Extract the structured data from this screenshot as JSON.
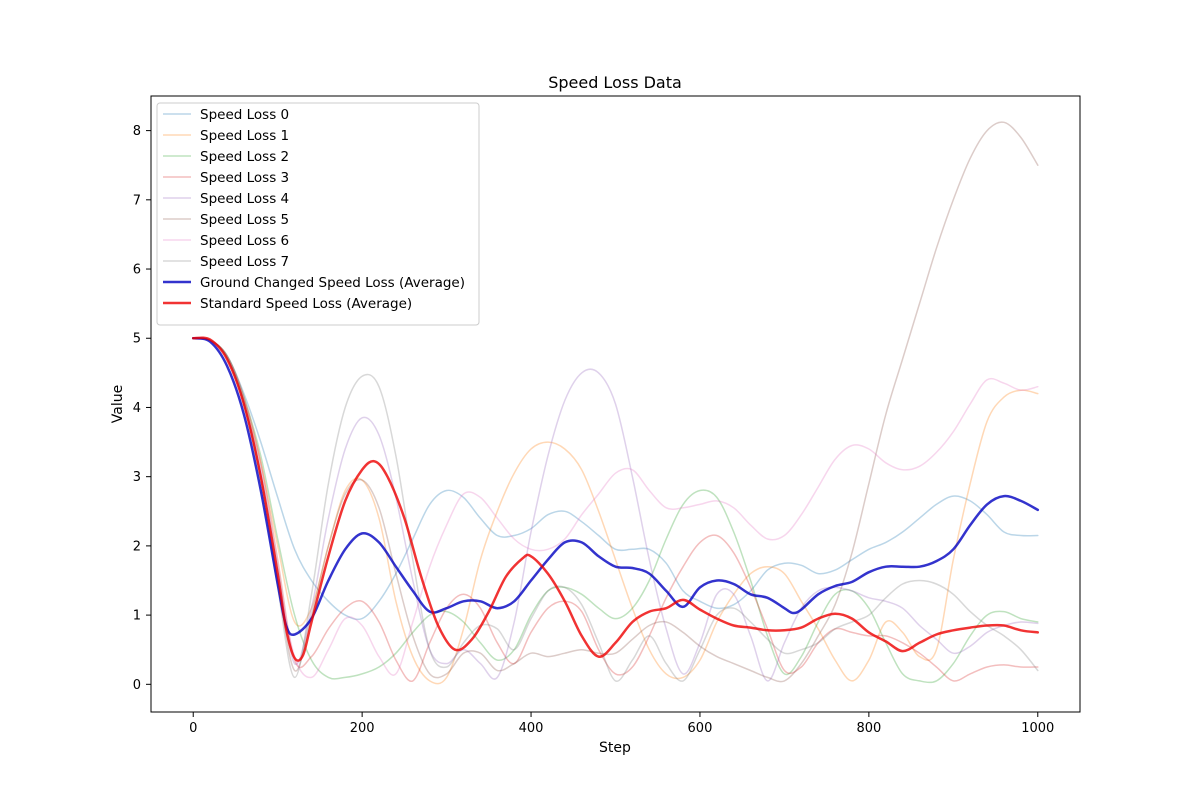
{
  "chart_data": {
    "type": "line",
    "title": "Speed Loss Data",
    "xlabel": "Step",
    "ylabel": "Value",
    "xlim": [
      -50,
      1050
    ],
    "ylim": [
      -0.4,
      8.5
    ],
    "xticks": [
      0,
      200,
      400,
      600,
      800,
      1000
    ],
    "yticks": [
      0,
      1,
      2,
      3,
      4,
      5,
      6,
      7,
      8
    ],
    "grid": false,
    "legend_position": "top-left",
    "series": [
      {
        "name": "Speed Loss 0",
        "color": "#1f77b4",
        "opacity": 0.3,
        "width": 1.5,
        "x": [
          0,
          20,
          40,
          60,
          80,
          100,
          120,
          140,
          160,
          180,
          200,
          220,
          240,
          260,
          280,
          300,
          320,
          340,
          360,
          380,
          400,
          420,
          440,
          460,
          480,
          500,
          520,
          540,
          560,
          580,
          600,
          620,
          640,
          660,
          680,
          700,
          720,
          740,
          760,
          780,
          800,
          820,
          840,
          860,
          880,
          900,
          920,
          940,
          960,
          980,
          1000
        ],
        "y": [
          5.0,
          4.97,
          4.75,
          4.2,
          3.5,
          2.7,
          1.95,
          1.5,
          1.2,
          1.0,
          0.95,
          1.2,
          1.6,
          2.1,
          2.6,
          2.8,
          2.7,
          2.4,
          2.15,
          2.15,
          2.25,
          2.45,
          2.5,
          2.35,
          2.15,
          1.95,
          1.95,
          1.95,
          1.75,
          1.35,
          1.2,
          1.1,
          1.15,
          1.35,
          1.65,
          1.75,
          1.72,
          1.6,
          1.65,
          1.8,
          1.95,
          2.05,
          2.2,
          2.4,
          2.6,
          2.72,
          2.65,
          2.45,
          2.2,
          2.15,
          2.15
        ]
      },
      {
        "name": "Speed Loss 1",
        "color": "#ff7f0e",
        "opacity": 0.3,
        "width": 1.5,
        "x": [
          0,
          20,
          40,
          60,
          80,
          100,
          120,
          140,
          160,
          180,
          200,
          220,
          240,
          260,
          280,
          300,
          320,
          340,
          360,
          380,
          400,
          420,
          440,
          460,
          480,
          500,
          520,
          540,
          560,
          580,
          600,
          620,
          640,
          660,
          680,
          700,
          720,
          740,
          760,
          780,
          800,
          820,
          840,
          860,
          880,
          900,
          920,
          940,
          960,
          980,
          1000
        ],
        "y": [
          5.0,
          4.97,
          4.72,
          4.1,
          3.2,
          2.0,
          0.9,
          1.1,
          2.0,
          2.8,
          2.95,
          2.4,
          1.2,
          0.4,
          0.05,
          0.1,
          0.8,
          1.8,
          2.5,
          3.05,
          3.4,
          3.5,
          3.4,
          3.1,
          2.5,
          1.8,
          1.1,
          0.5,
          0.15,
          0.1,
          0.35,
          0.9,
          1.3,
          1.6,
          1.7,
          1.6,
          1.2,
          0.8,
          0.35,
          0.05,
          0.35,
          0.9,
          0.75,
          0.4,
          0.5,
          1.8,
          2.9,
          3.8,
          4.15,
          4.25,
          4.2
        ]
      },
      {
        "name": "Speed Loss 2",
        "color": "#2ca02c",
        "opacity": 0.3,
        "width": 1.5,
        "x": [
          0,
          20,
          40,
          60,
          80,
          100,
          120,
          140,
          160,
          180,
          200,
          220,
          240,
          260,
          280,
          300,
          320,
          340,
          360,
          380,
          400,
          420,
          440,
          460,
          480,
          500,
          520,
          540,
          560,
          580,
          600,
          620,
          640,
          660,
          680,
          700,
          720,
          740,
          760,
          780,
          800,
          820,
          840,
          860,
          880,
          900,
          920,
          940,
          960,
          980,
          1000
        ],
        "y": [
          5.0,
          4.97,
          4.75,
          4.15,
          3.3,
          2.1,
          1.0,
          0.35,
          0.1,
          0.1,
          0.15,
          0.25,
          0.45,
          0.75,
          1.0,
          1.05,
          0.9,
          0.6,
          0.35,
          0.5,
          1.0,
          1.35,
          1.4,
          1.3,
          1.1,
          0.95,
          1.1,
          1.5,
          2.1,
          2.6,
          2.8,
          2.7,
          2.2,
          1.5,
          0.7,
          0.15,
          0.4,
          0.9,
          1.3,
          1.35,
          1.1,
          0.6,
          0.15,
          0.05,
          0.05,
          0.3,
          0.7,
          1.0,
          1.05,
          0.95,
          0.9
        ]
      },
      {
        "name": "Speed Loss 3",
        "color": "#d62728",
        "opacity": 0.3,
        "width": 1.5,
        "x": [
          0,
          20,
          40,
          60,
          80,
          100,
          120,
          140,
          160,
          180,
          200,
          220,
          240,
          260,
          280,
          300,
          320,
          340,
          360,
          380,
          400,
          420,
          440,
          460,
          480,
          500,
          520,
          540,
          560,
          580,
          600,
          620,
          640,
          660,
          680,
          700,
          720,
          740,
          760,
          780,
          800,
          820,
          840,
          860,
          880,
          900,
          920,
          940,
          960,
          980,
          1000
        ],
        "y": [
          5.0,
          4.97,
          4.75,
          4.15,
          3.2,
          1.8,
          0.35,
          0.4,
          0.8,
          1.1,
          1.2,
          0.9,
          0.35,
          0.05,
          0.6,
          1.1,
          1.3,
          1.1,
          0.6,
          0.3,
          0.75,
          1.1,
          1.2,
          1.05,
          0.5,
          0.15,
          0.25,
          0.7,
          1.25,
          1.7,
          2.05,
          2.15,
          1.9,
          1.4,
          0.8,
          0.2,
          0.25,
          0.6,
          0.8,
          0.75,
          0.7,
          0.7,
          0.6,
          0.45,
          0.25,
          0.05,
          0.15,
          0.25,
          0.28,
          0.25,
          0.25
        ]
      },
      {
        "name": "Speed Loss 4",
        "color": "#9467bd",
        "opacity": 0.3,
        "width": 1.5,
        "x": [
          0,
          20,
          40,
          60,
          80,
          100,
          120,
          140,
          160,
          180,
          200,
          220,
          240,
          260,
          280,
          300,
          320,
          340,
          360,
          380,
          400,
          420,
          440,
          460,
          480,
          500,
          520,
          540,
          560,
          580,
          600,
          620,
          640,
          660,
          680,
          700,
          720,
          740,
          760,
          780,
          800,
          820,
          840,
          860,
          880,
          900,
          920,
          940,
          960,
          980,
          1000
        ],
        "y": [
          5.0,
          4.97,
          4.72,
          4.1,
          3.1,
          1.7,
          0.3,
          1.1,
          2.4,
          3.4,
          3.85,
          3.6,
          2.7,
          1.5,
          0.5,
          0.3,
          0.5,
          0.3,
          0.1,
          0.9,
          2.2,
          3.3,
          4.1,
          4.5,
          4.5,
          4.05,
          3.0,
          1.8,
          0.8,
          0.15,
          0.6,
          1.3,
          1.3,
          0.7,
          0.05,
          0.6,
          1.1,
          1.35,
          1.4,
          1.35,
          1.25,
          1.2,
          1.1,
          0.85,
          0.65,
          0.45,
          0.55,
          0.75,
          0.85,
          0.9,
          0.88
        ]
      },
      {
        "name": "Speed Loss 5",
        "color": "#8c564b",
        "opacity": 0.3,
        "width": 1.5,
        "x": [
          0,
          20,
          40,
          60,
          80,
          100,
          120,
          140,
          160,
          180,
          200,
          220,
          240,
          260,
          280,
          300,
          320,
          340,
          360,
          380,
          400,
          420,
          440,
          460,
          480,
          500,
          520,
          540,
          560,
          580,
          600,
          620,
          640,
          660,
          680,
          700,
          720,
          740,
          760,
          780,
          800,
          820,
          840,
          860,
          880,
          900,
          920,
          940,
          960,
          980,
          1000
        ],
        "y": [
          5.0,
          4.97,
          4.72,
          4.05,
          3.0,
          1.5,
          0.2,
          1.0,
          2.0,
          2.75,
          2.95,
          2.55,
          1.6,
          0.7,
          0.15,
          0.15,
          0.45,
          0.45,
          0.2,
          0.3,
          0.45,
          0.4,
          0.45,
          0.5,
          0.45,
          0.45,
          0.65,
          0.85,
          0.9,
          0.75,
          0.55,
          0.4,
          0.3,
          0.2,
          0.1,
          0.05,
          0.3,
          0.7,
          1.15,
          1.9,
          2.9,
          3.9,
          4.7,
          5.5,
          6.3,
          7.0,
          7.6,
          8.0,
          8.12,
          7.9,
          7.5
        ]
      },
      {
        "name": "Speed Loss 6",
        "color": "#e377c2",
        "opacity": 0.3,
        "width": 1.5,
        "x": [
          0,
          20,
          40,
          60,
          80,
          100,
          120,
          140,
          160,
          180,
          200,
          220,
          240,
          260,
          280,
          300,
          320,
          340,
          360,
          380,
          400,
          420,
          440,
          460,
          480,
          500,
          520,
          540,
          560,
          580,
          600,
          620,
          640,
          660,
          680,
          700,
          720,
          740,
          760,
          780,
          800,
          820,
          840,
          860,
          880,
          900,
          920,
          940,
          960,
          980,
          1000
        ],
        "y": [
          5.0,
          4.97,
          4.72,
          4.05,
          3.0,
          1.6,
          0.4,
          0.1,
          0.5,
          0.95,
          0.85,
          0.4,
          0.15,
          0.9,
          1.7,
          2.3,
          2.75,
          2.7,
          2.4,
          2.1,
          1.95,
          1.95,
          2.1,
          2.45,
          2.75,
          3.05,
          3.1,
          2.8,
          2.55,
          2.55,
          2.6,
          2.65,
          2.55,
          2.3,
          2.1,
          2.15,
          2.45,
          2.85,
          3.25,
          3.45,
          3.4,
          3.2,
          3.1,
          3.15,
          3.35,
          3.65,
          4.05,
          4.4,
          4.35,
          4.25,
          4.3
        ]
      },
      {
        "name": "Speed Loss 7",
        "color": "#7f7f7f",
        "opacity": 0.3,
        "width": 1.5,
        "x": [
          0,
          20,
          40,
          60,
          80,
          100,
          120,
          140,
          160,
          180,
          200,
          220,
          240,
          260,
          280,
          300,
          320,
          340,
          360,
          380,
          400,
          420,
          440,
          460,
          480,
          500,
          520,
          540,
          560,
          580,
          600,
          620,
          640,
          660,
          680,
          700,
          720,
          740,
          760,
          780,
          800,
          820,
          840,
          860,
          880,
          900,
          920,
          940,
          960,
          980,
          1000
        ],
        "y": [
          5.0,
          4.97,
          4.72,
          4.05,
          2.9,
          1.4,
          0.1,
          1.3,
          2.9,
          4.0,
          4.45,
          4.3,
          3.3,
          1.8,
          0.5,
          0.25,
          0.6,
          0.85,
          0.8,
          0.5,
          0.95,
          1.35,
          1.4,
          1.15,
          0.6,
          0.05,
          0.35,
          0.7,
          0.3,
          0.05,
          0.5,
          1.0,
          1.1,
          0.9,
          0.65,
          0.45,
          0.5,
          0.6,
          0.8,
          0.9,
          1.0,
          1.25,
          1.45,
          1.5,
          1.45,
          1.3,
          1.05,
          0.85,
          0.7,
          0.5,
          0.2
        ]
      },
      {
        "name": "Ground Changed Speed Loss (Average)",
        "color": "#0000c0",
        "opacity": 0.8,
        "width": 2.5,
        "x": [
          0,
          20,
          40,
          60,
          80,
          100,
          110,
          120,
          140,
          160,
          180,
          200,
          220,
          240,
          260,
          280,
          300,
          320,
          340,
          360,
          380,
          400,
          420,
          440,
          460,
          480,
          500,
          520,
          540,
          560,
          580,
          600,
          620,
          640,
          660,
          680,
          700,
          710,
          720,
          740,
          760,
          780,
          800,
          820,
          840,
          860,
          880,
          900,
          920,
          940,
          960,
          980,
          1000
        ],
        "y": [
          5.0,
          4.95,
          4.6,
          3.9,
          2.8,
          1.45,
          0.85,
          0.72,
          0.95,
          1.5,
          1.95,
          2.18,
          2.05,
          1.7,
          1.35,
          1.05,
          1.1,
          1.2,
          1.2,
          1.1,
          1.2,
          1.5,
          1.8,
          2.05,
          2.05,
          1.85,
          1.7,
          1.68,
          1.6,
          1.35,
          1.12,
          1.4,
          1.5,
          1.45,
          1.3,
          1.25,
          1.1,
          1.03,
          1.08,
          1.3,
          1.42,
          1.48,
          1.62,
          1.7,
          1.7,
          1.7,
          1.78,
          1.95,
          2.3,
          2.6,
          2.72,
          2.65,
          2.52
        ]
      },
      {
        "name": "Standard Speed Loss (Average)",
        "color": "#ee0000",
        "opacity": 0.8,
        "width": 2.5,
        "x": [
          0,
          20,
          40,
          60,
          80,
          100,
          110,
          120,
          130,
          140,
          160,
          180,
          200,
          215,
          230,
          250,
          270,
          290,
          310,
          330,
          350,
          370,
          390,
          400,
          420,
          440,
          460,
          480,
          500,
          520,
          540,
          560,
          580,
          600,
          620,
          640,
          660,
          680,
          700,
          720,
          740,
          760,
          780,
          800,
          820,
          840,
          860,
          880,
          900,
          920,
          940,
          960,
          980,
          1000
        ],
        "y": [
          5.0,
          4.98,
          4.7,
          4.05,
          3.0,
          1.6,
          0.8,
          0.38,
          0.42,
          0.9,
          1.85,
          2.65,
          3.1,
          3.22,
          3.0,
          2.4,
          1.55,
          0.85,
          0.5,
          0.65,
          1.05,
          1.55,
          1.82,
          1.85,
          1.6,
          1.2,
          0.7,
          0.4,
          0.6,
          0.9,
          1.05,
          1.1,
          1.22,
          1.08,
          0.95,
          0.85,
          0.82,
          0.78,
          0.78,
          0.82,
          0.95,
          1.02,
          0.95,
          0.75,
          0.62,
          0.48,
          0.6,
          0.72,
          0.78,
          0.82,
          0.85,
          0.85,
          0.78,
          0.75
        ]
      }
    ]
  }
}
